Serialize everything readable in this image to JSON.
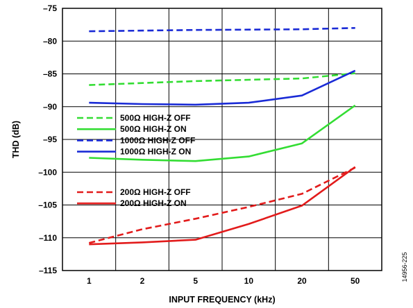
{
  "figure_id": "14956-225",
  "chart_data": {
    "type": "line",
    "title": "",
    "xlabel": "INPUT FREQUENCY (kHz)",
    "ylabel": "THD (dB)",
    "x_scale": "log",
    "categories": [
      "1",
      "2",
      "5",
      "10",
      "20",
      "50"
    ],
    "x": [
      1,
      2,
      5,
      10,
      20,
      50
    ],
    "ylim": [
      -115,
      -75
    ],
    "yticks": [
      -75,
      -80,
      -85,
      -90,
      -95,
      -100,
      -105,
      -110,
      -115
    ],
    "ytick_labels": [
      "–75",
      "–80",
      "–85",
      "–90",
      "–95",
      "–100",
      "–105",
      "–110",
      "–115"
    ],
    "grid": true,
    "legend_groups": [
      [
        "500Ω HIGH-Z OFF",
        "500Ω HIGH-Z ON",
        "1000Ω HIGH-Z OFF",
        "1000Ω HIGH-Z ON"
      ],
      [
        "200Ω HIGH-Z OFF",
        "200Ω HIGH-Z ON"
      ]
    ],
    "series": [
      {
        "name": "500Ω HIGH-Z OFF",
        "color": "#33dd33",
        "dashed": true,
        "values": [
          -86.7,
          -86.4,
          -86.1,
          -85.9,
          -85.7,
          -84.9
        ]
      },
      {
        "name": "500Ω HIGH-Z ON",
        "color": "#33dd33",
        "dashed": false,
        "values": [
          -97.8,
          -98.1,
          -98.3,
          -97.6,
          -95.6,
          -89.8
        ]
      },
      {
        "name": "1000Ω HIGH-Z OFF",
        "color": "#1a2bd6",
        "dashed": true,
        "values": [
          -78.5,
          -78.4,
          -78.3,
          -78.25,
          -78.2,
          -78.0
        ]
      },
      {
        "name": "1000Ω HIGH-Z ON",
        "color": "#1a2bd6",
        "dashed": false,
        "values": [
          -89.4,
          -89.6,
          -89.7,
          -89.4,
          -88.3,
          -84.5
        ]
      },
      {
        "name": "200Ω HIGH-Z OFF",
        "color": "#e21b1b",
        "dashed": true,
        "values": [
          -110.8,
          -108.7,
          -107.1,
          -105.3,
          -103.3,
          -99.3
        ]
      },
      {
        "name": "200Ω HIGH-Z ON",
        "color": "#e21b1b",
        "dashed": false,
        "values": [
          -111.0,
          -110.7,
          -110.3,
          -107.9,
          -105.1,
          -99.2
        ]
      }
    ]
  }
}
